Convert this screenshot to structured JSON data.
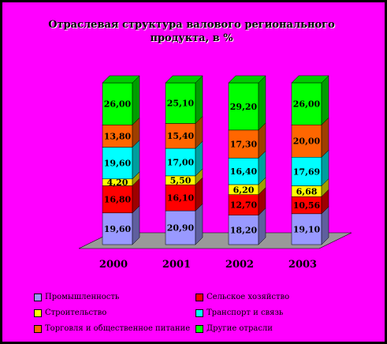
{
  "colors": {
    "background": "#ff00ff",
    "floor": "#999999"
  },
  "chart_data": {
    "type": "bar",
    "stacked": true,
    "title": "Отраслевая структура валового регионального продукта, в %",
    "categories": [
      "2000",
      "2001",
      "2002",
      "2003"
    ],
    "series": [
      {
        "name": "Промышленность",
        "color": "#9999ff",
        "values": [
          19.6,
          20.9,
          18.2,
          19.1
        ],
        "labels": [
          "19,60",
          "20,90",
          "18,20",
          "19,10"
        ]
      },
      {
        "name": "Сельское хозяйство",
        "color": "#ff0000",
        "values": [
          16.8,
          16.1,
          12.7,
          10.56
        ],
        "labels": [
          "16,80",
          "16,10",
          "12,70",
          "10,56"
        ]
      },
      {
        "name": "Строительство",
        "color": "#ffff00",
        "values": [
          4.2,
          5.5,
          6.2,
          6.68
        ],
        "labels": [
          "4,20",
          "5,50",
          "6,20",
          "6,68"
        ]
      },
      {
        "name": "Транспорт и связь",
        "color": "#00ffff",
        "values": [
          19.6,
          17.0,
          16.4,
          17.69
        ],
        "labels": [
          "19,60",
          "17,00",
          "16,40",
          "17,69"
        ]
      },
      {
        "name": "Торговля и общественное питание",
        "color": "#ff6600",
        "values": [
          13.8,
          15.4,
          17.3,
          20.0
        ],
        "labels": [
          "13,80",
          "15,40",
          "17,30",
          "20,00"
        ]
      },
      {
        "name": "Другие отрасли",
        "color": "#00ff00",
        "values": [
          26.0,
          25.1,
          29.2,
          26.0
        ],
        "labels": [
          "26,00",
          "25,10",
          "29,20",
          "26,00"
        ]
      }
    ],
    "ylim": [
      0,
      100
    ],
    "legend_position": "bottom"
  }
}
